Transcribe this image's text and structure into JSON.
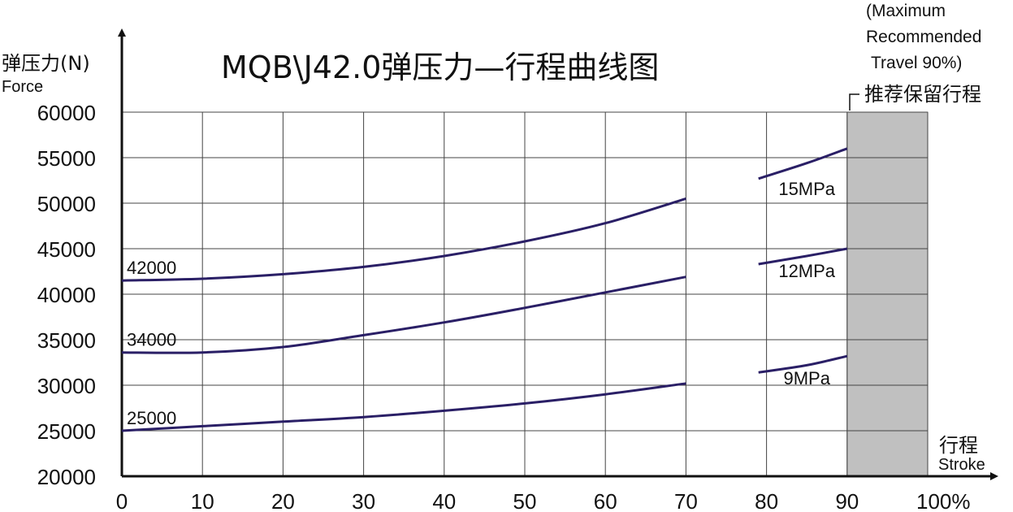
{
  "chart_data": {
    "type": "line",
    "title": "MQB\\J42.0弹压力—行程曲线图",
    "ylabel_cn": "弹压力(N)",
    "ylabel_en": "Force",
    "xlabel_cn": "行程",
    "xlabel_en": "Stroke",
    "xlim": [
      0,
      100
    ],
    "ylim": [
      20000,
      60000
    ],
    "x_ticks": [
      "0",
      "10",
      "20",
      "30",
      "40",
      "50",
      "60",
      "70",
      "80",
      "90",
      "100%"
    ],
    "y_ticks": [
      "20000",
      "25000",
      "30000",
      "35000",
      "40000",
      "45000",
      "50000",
      "55000",
      "60000"
    ],
    "grid": true,
    "reserved_region": {
      "x_range": [
        90,
        100
      ],
      "color": "#c0c0c0",
      "label": "推荐保留行程",
      "note_lines": [
        "(Maximum",
        "Recommended",
        "Travel 90%)"
      ]
    },
    "line_color": "#2a1f66",
    "series": [
      {
        "name": "15MPa",
        "start_label": "42000",
        "segments": [
          {
            "x": [
              0,
              10,
              20,
              30,
              40,
              50,
              60,
              70
            ],
            "y": [
              41500,
              41700,
              42200,
              43000,
              44200,
              45800,
              47800,
              50500
            ]
          },
          {
            "x": [
              79,
              85,
              90
            ],
            "y": [
              52700,
              54400,
              56000
            ]
          }
        ]
      },
      {
        "name": "12MPa",
        "start_label": "34000",
        "segments": [
          {
            "x": [
              0,
              10,
              20,
              30,
              40,
              50,
              60,
              70
            ],
            "y": [
              33600,
              33600,
              34200,
              35500,
              36900,
              38500,
              40200,
              41900
            ]
          },
          {
            "x": [
              79,
              85,
              90
            ],
            "y": [
              43300,
              44200,
              45000
            ]
          }
        ]
      },
      {
        "name": "9MPa",
        "start_label": "25000",
        "segments": [
          {
            "x": [
              0,
              10,
              20,
              30,
              40,
              50,
              60,
              70
            ],
            "y": [
              25000,
              25500,
              26000,
              26500,
              27200,
              28000,
              29000,
              30200
            ]
          },
          {
            "x": [
              79,
              85,
              90
            ],
            "y": [
              31400,
              32200,
              33200
            ]
          }
        ]
      }
    ]
  }
}
